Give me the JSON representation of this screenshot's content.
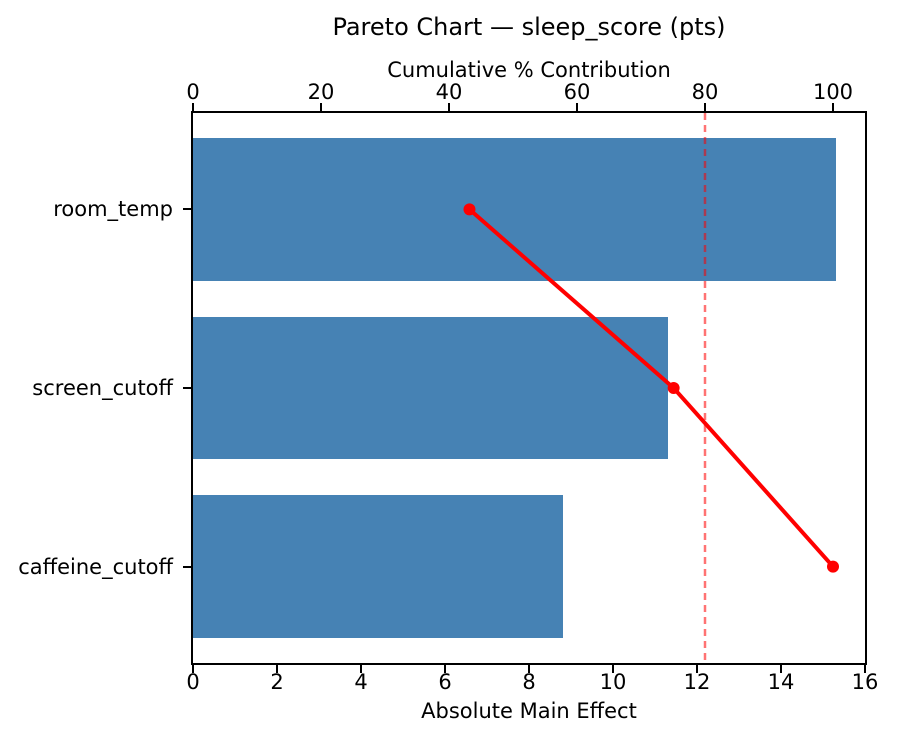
{
  "figure": {
    "title": "Pareto Chart — sleep_score (pts)"
  },
  "chart_data": {
    "type": "bar",
    "orientation": "horizontal",
    "title": "Pareto Chart — sleep_score (pts)",
    "categories": [
      "room_temp",
      "screen_cutoff",
      "caffeine_cutoff"
    ],
    "series": [
      {
        "name": "Absolute Main Effect",
        "type": "bar",
        "values": [
          15.3,
          11.3,
          8.8
        ]
      },
      {
        "name": "Cumulative % Contribution",
        "type": "line",
        "values_pct": [
          43.2,
          75.1,
          100.0
        ]
      }
    ],
    "bottom_axis": {
      "label": "Absolute Main Effect",
      "min": 0,
      "max": 16,
      "ticks": [
        0,
        2,
        4,
        6,
        8,
        10,
        12,
        14,
        16
      ]
    },
    "top_axis": {
      "label": "Cumulative % Contribution",
      "min": 0,
      "max": 105,
      "ticks": [
        0,
        20,
        40,
        60,
        80,
        100
      ]
    },
    "threshold_line": {
      "value_pct": 80,
      "style": "dashed"
    },
    "colors": {
      "bar": "#4682b4",
      "cumulative_line": "#ff0000",
      "threshold": "rgba(255,0,0,0.55)",
      "axis": "#000000"
    },
    "bar_height_fraction": 0.8,
    "grid": false,
    "legend": false
  }
}
